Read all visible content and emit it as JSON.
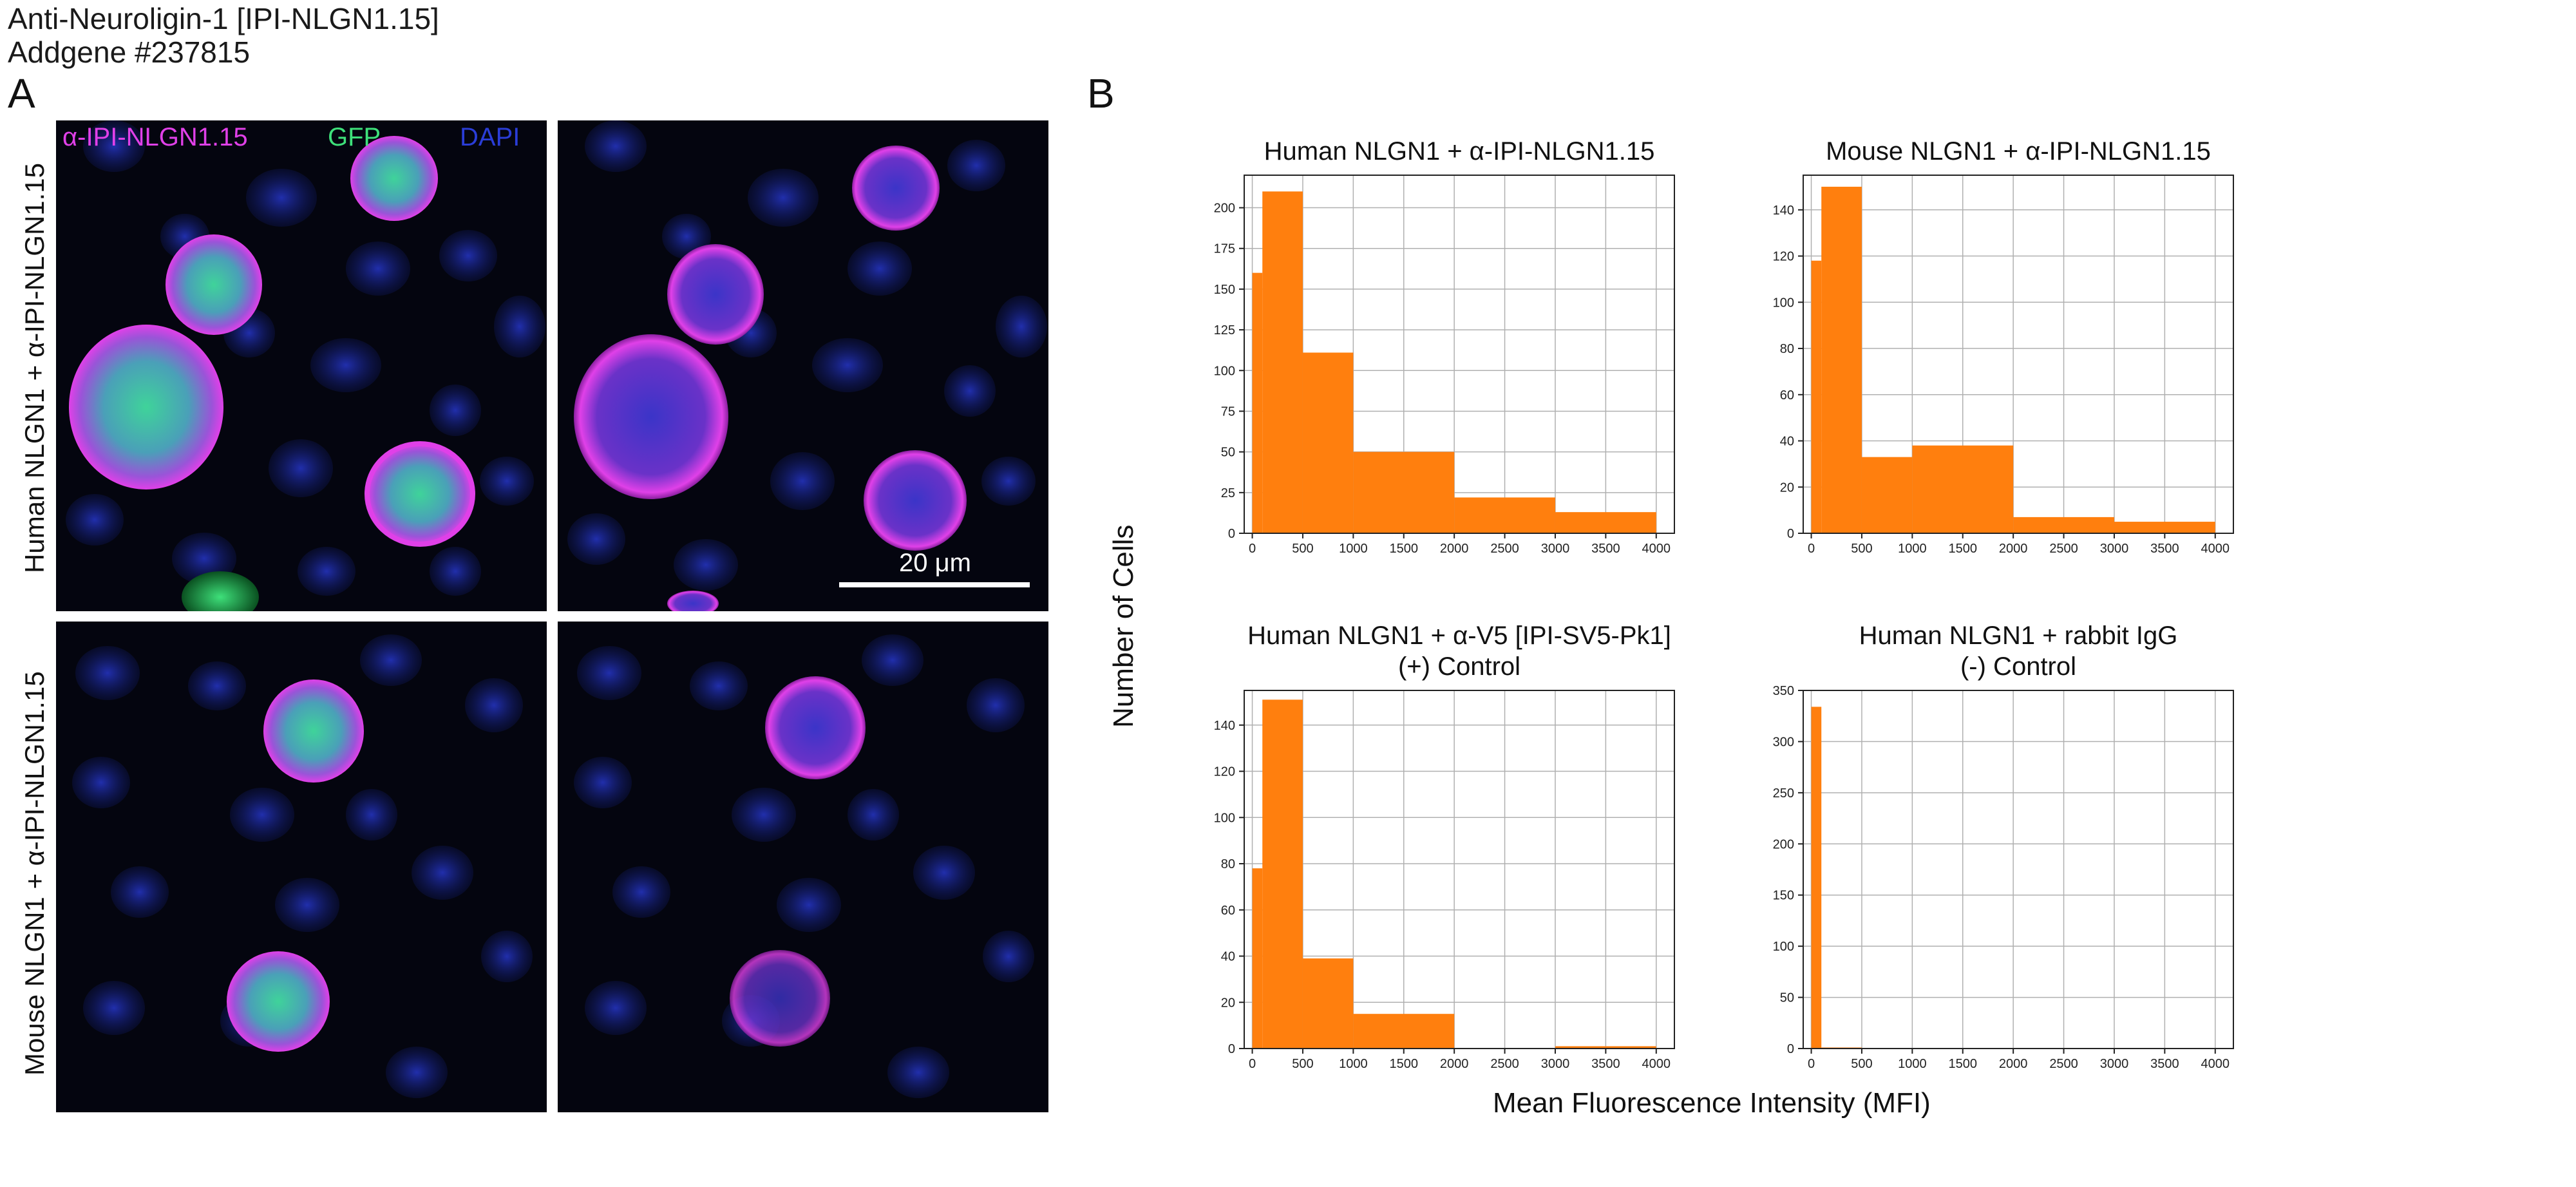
{
  "header": {
    "title_line1": "Anti-Neuroligin-1 [IPI-NLGN1.15]",
    "title_line2": "Addgene #237815"
  },
  "panel_a": {
    "letter": "A",
    "legend": {
      "antibody": "α-IPI-NLGN1.15",
      "gfp": "GFP",
      "dapi": "DAPI"
    },
    "row_labels": [
      "Human NLGN1 + α-IPI-NLGN1.15",
      "Mouse NLGN1 + α-IPI-NLGN1.15"
    ],
    "scale_bar": "20 μm",
    "colors": {
      "magenta": "#e040e8",
      "green": "#3ee07a",
      "blue": "#2a3dd6",
      "background": "#04050f"
    }
  },
  "panel_b": {
    "letter": "B",
    "y_axis_title": "Number of Cells",
    "x_axis_title": "Mean Fluorescence Intensity (MFI)",
    "bar_color": "#ff7f0e"
  },
  "chart_data": [
    {
      "type": "bar",
      "title": "Human NLGN1 + α-IPI-NLGN1.15",
      "title_lines": [
        "Human NLGN1 + α-IPI-NLGN1.15"
      ],
      "xlabel": "Mean Fluorescence Intensity (MFI)",
      "ylabel": "Number of Cells",
      "xlim": [
        -80,
        4180
      ],
      "ylim": [
        0,
        220
      ],
      "xticks": [
        0,
        500,
        1000,
        1500,
        2000,
        2500,
        3000,
        3500,
        4000
      ],
      "yticks": [
        0,
        25,
        50,
        75,
        100,
        125,
        150,
        175,
        200
      ],
      "grid": true,
      "bins": [
        {
          "x0": 0,
          "x1": 100,
          "value": 160
        },
        {
          "x0": 100,
          "x1": 500,
          "value": 210
        },
        {
          "x0": 500,
          "x1": 1000,
          "value": 111
        },
        {
          "x0": 1000,
          "x1": 2000,
          "value": 50
        },
        {
          "x0": 2000,
          "x1": 3000,
          "value": 22
        },
        {
          "x0": 3000,
          "x1": 4000,
          "value": 13
        }
      ]
    },
    {
      "type": "bar",
      "title": "Mouse NLGN1 + α-IPI-NLGN1.15",
      "title_lines": [
        "Mouse NLGN1 + α-IPI-NLGN1.15"
      ],
      "xlabel": "Mean Fluorescence Intensity (MFI)",
      "ylabel": "Number of Cells",
      "xlim": [
        -80,
        4180
      ],
      "ylim": [
        0,
        155
      ],
      "xticks": [
        0,
        500,
        1000,
        1500,
        2000,
        2500,
        3000,
        3500,
        4000
      ],
      "yticks": [
        0,
        20,
        40,
        60,
        80,
        100,
        120,
        140
      ],
      "grid": true,
      "bins": [
        {
          "x0": 0,
          "x1": 100,
          "value": 118
        },
        {
          "x0": 100,
          "x1": 500,
          "value": 150
        },
        {
          "x0": 500,
          "x1": 1000,
          "value": 33
        },
        {
          "x0": 1000,
          "x1": 2000,
          "value": 38
        },
        {
          "x0": 2000,
          "x1": 3000,
          "value": 7
        },
        {
          "x0": 3000,
          "x1": 4000,
          "value": 5
        }
      ]
    },
    {
      "type": "bar",
      "title": "Human NLGN1 + α-V5 [IPI-SV5-Pk1] (+) Control",
      "title_lines": [
        "Human NLGN1 + α-V5 [IPI-SV5-Pk1]",
        "(+) Control"
      ],
      "xlabel": "Mean Fluorescence Intensity (MFI)",
      "ylabel": "Number of Cells",
      "xlim": [
        -80,
        4180
      ],
      "ylim": [
        0,
        155
      ],
      "xticks": [
        0,
        500,
        1000,
        1500,
        2000,
        2500,
        3000,
        3500,
        4000
      ],
      "yticks": [
        0,
        20,
        40,
        60,
        80,
        100,
        120,
        140
      ],
      "grid": true,
      "bins": [
        {
          "x0": 0,
          "x1": 100,
          "value": 78
        },
        {
          "x0": 100,
          "x1": 500,
          "value": 151
        },
        {
          "x0": 500,
          "x1": 1000,
          "value": 39
        },
        {
          "x0": 1000,
          "x1": 2000,
          "value": 15
        },
        {
          "x0": 2000,
          "x1": 3000,
          "value": 0
        },
        {
          "x0": 3000,
          "x1": 4000,
          "value": 1
        }
      ]
    },
    {
      "type": "bar",
      "title": "Human NLGN1 + rabbit IgG (-) Control",
      "title_lines": [
        "Human NLGN1 + rabbit IgG",
        "(-) Control"
      ],
      "xlabel": "Mean Fluorescence Intensity (MFI)",
      "ylabel": "Number of Cells",
      "xlim": [
        -80,
        4180
      ],
      "ylim": [
        0,
        350
      ],
      "xticks": [
        0,
        500,
        1000,
        1500,
        2000,
        2500,
        3000,
        3500,
        4000
      ],
      "yticks": [
        0,
        50,
        100,
        150,
        200,
        250,
        300,
        350
      ],
      "grid": true,
      "bins": [
        {
          "x0": 0,
          "x1": 100,
          "value": 334
        },
        {
          "x0": 100,
          "x1": 500,
          "value": 1
        },
        {
          "x0": 500,
          "x1": 1000,
          "value": 0
        },
        {
          "x0": 1000,
          "x1": 2000,
          "value": 0
        },
        {
          "x0": 2000,
          "x1": 3000,
          "value": 0
        },
        {
          "x0": 3000,
          "x1": 4000,
          "value": 0
        }
      ]
    }
  ]
}
